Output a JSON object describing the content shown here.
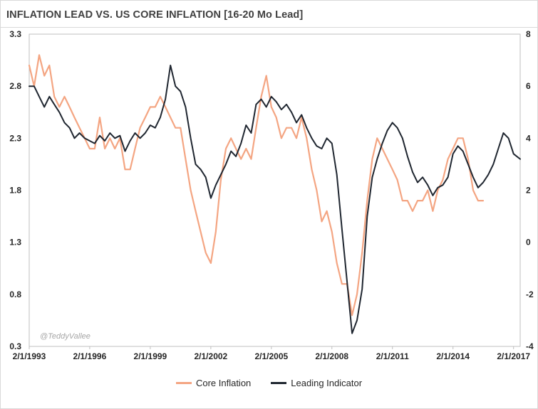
{
  "colors": {
    "core": "#f4a582",
    "leading": "#1f2630",
    "gridline": "#d9d9d9",
    "axis": "#bfbfbf"
  },
  "chart_data": {
    "type": "line",
    "title": "INFLATION LEAD VS. US CORE INFLATION [16-20 Mo Lead]",
    "watermark": "@TeddyVallee",
    "x_range": [
      "1993-02-01",
      "2017-06-01"
    ],
    "x_tick_labels": [
      "2/1/1993",
      "2/1/1996",
      "2/1/1999",
      "2/1/2002",
      "2/1/2005",
      "2/1/2008",
      "2/1/2011",
      "2/1/2014",
      "2/1/2017"
    ],
    "y_left": {
      "ylim": [
        0.3,
        3.3
      ],
      "ticks": [
        "3.3",
        "2.8",
        "2.3",
        "1.8",
        "1.3",
        "0.8",
        "0.3"
      ]
    },
    "y_right": {
      "ylim": [
        -4,
        8
      ],
      "ticks": [
        "8",
        "6",
        "4",
        "2",
        "0",
        "-2",
        "-4"
      ]
    },
    "grid": false,
    "legend_position": "bottom",
    "series": [
      {
        "name": "Core Inflation",
        "axis": "left",
        "points": [
          [
            "1993-02-01",
            3.0
          ],
          [
            "1993-05-01",
            2.8
          ],
          [
            "1993-08-01",
            3.1
          ],
          [
            "1993-11-01",
            2.9
          ],
          [
            "1994-02-01",
            3.0
          ],
          [
            "1994-05-01",
            2.7
          ],
          [
            "1994-08-01",
            2.6
          ],
          [
            "1994-11-01",
            2.7
          ],
          [
            "1995-02-01",
            2.6
          ],
          [
            "1995-05-01",
            2.5
          ],
          [
            "1995-08-01",
            2.4
          ],
          [
            "1995-11-01",
            2.3
          ],
          [
            "1996-02-01",
            2.2
          ],
          [
            "1996-05-01",
            2.2
          ],
          [
            "1996-08-01",
            2.5
          ],
          [
            "1996-11-01",
            2.2
          ],
          [
            "1997-02-01",
            2.3
          ],
          [
            "1997-05-01",
            2.2
          ],
          [
            "1997-08-01",
            2.3
          ],
          [
            "1997-11-01",
            2.0
          ],
          [
            "1998-02-01",
            2.0
          ],
          [
            "1998-05-01",
            2.2
          ],
          [
            "1998-08-01",
            2.4
          ],
          [
            "1998-11-01",
            2.5
          ],
          [
            "1999-02-01",
            2.6
          ],
          [
            "1999-05-01",
            2.6
          ],
          [
            "1999-08-01",
            2.7
          ],
          [
            "1999-11-01",
            2.6
          ],
          [
            "2000-02-01",
            2.5
          ],
          [
            "2000-05-01",
            2.4
          ],
          [
            "2000-08-01",
            2.4
          ],
          [
            "2000-11-01",
            2.1
          ],
          [
            "2001-02-01",
            1.8
          ],
          [
            "2001-05-01",
            1.6
          ],
          [
            "2001-08-01",
            1.4
          ],
          [
            "2001-11-01",
            1.2
          ],
          [
            "2002-02-01",
            1.1
          ],
          [
            "2002-05-01",
            1.4
          ],
          [
            "2002-08-01",
            1.9
          ],
          [
            "2002-11-01",
            2.2
          ],
          [
            "2003-02-01",
            2.3
          ],
          [
            "2003-05-01",
            2.2
          ],
          [
            "2003-08-01",
            2.1
          ],
          [
            "2003-11-01",
            2.2
          ],
          [
            "2004-02-01",
            2.1
          ],
          [
            "2004-05-01",
            2.4
          ],
          [
            "2004-08-01",
            2.7
          ],
          [
            "2004-11-01",
            2.9
          ],
          [
            "2005-02-01",
            2.6
          ],
          [
            "2005-05-01",
            2.5
          ],
          [
            "2005-08-01",
            2.3
          ],
          [
            "2005-11-01",
            2.4
          ],
          [
            "2006-02-01",
            2.4
          ],
          [
            "2006-05-01",
            2.3
          ],
          [
            "2006-08-01",
            2.5
          ],
          [
            "2006-11-01",
            2.3
          ],
          [
            "2007-02-01",
            2.0
          ],
          [
            "2007-05-01",
            1.8
          ],
          [
            "2007-08-01",
            1.5
          ],
          [
            "2007-11-01",
            1.6
          ],
          [
            "2008-02-01",
            1.4
          ],
          [
            "2008-05-01",
            1.1
          ],
          [
            "2008-08-01",
            0.9
          ],
          [
            "2008-11-01",
            0.9
          ],
          [
            "2009-02-01",
            0.6
          ],
          [
            "2009-05-01",
            0.8
          ],
          [
            "2009-08-01",
            1.2
          ],
          [
            "2009-11-01",
            1.7
          ],
          [
            "2010-02-01",
            2.1
          ],
          [
            "2010-05-01",
            2.3
          ],
          [
            "2010-08-01",
            2.2
          ],
          [
            "2010-11-01",
            2.1
          ],
          [
            "2011-02-01",
            2.0
          ],
          [
            "2011-05-01",
            1.9
          ],
          [
            "2011-08-01",
            1.7
          ],
          [
            "2011-11-01",
            1.7
          ],
          [
            "2012-02-01",
            1.6
          ],
          [
            "2012-05-01",
            1.7
          ],
          [
            "2012-08-01",
            1.7
          ],
          [
            "2012-11-01",
            1.8
          ],
          [
            "2013-02-01",
            1.6
          ],
          [
            "2013-05-01",
            1.8
          ],
          [
            "2013-08-01",
            1.9
          ],
          [
            "2013-11-01",
            2.1
          ],
          [
            "2014-02-01",
            2.2
          ],
          [
            "2014-05-01",
            2.3
          ],
          [
            "2014-08-01",
            2.3
          ],
          [
            "2014-11-01",
            2.1
          ],
          [
            "2015-02-01",
            1.8
          ],
          [
            "2015-05-01",
            1.7
          ],
          [
            "2015-08-01",
            1.7
          ]
        ]
      },
      {
        "name": "Leading Indicator",
        "axis": "right",
        "points": [
          [
            "1993-02-01",
            6.0
          ],
          [
            "1993-05-01",
            6.0
          ],
          [
            "1993-08-01",
            5.6
          ],
          [
            "1993-11-01",
            5.2
          ],
          [
            "1994-02-01",
            5.6
          ],
          [
            "1994-05-01",
            5.3
          ],
          [
            "1994-08-01",
            5.0
          ],
          [
            "1994-11-01",
            4.6
          ],
          [
            "1995-02-01",
            4.4
          ],
          [
            "1995-05-01",
            4.0
          ],
          [
            "1995-08-01",
            4.2
          ],
          [
            "1995-11-01",
            4.0
          ],
          [
            "1996-02-01",
            3.9
          ],
          [
            "1996-05-01",
            3.8
          ],
          [
            "1996-08-01",
            4.1
          ],
          [
            "1996-11-01",
            3.9
          ],
          [
            "1997-02-01",
            4.2
          ],
          [
            "1997-05-01",
            4.0
          ],
          [
            "1997-08-01",
            4.1
          ],
          [
            "1997-11-01",
            3.5
          ],
          [
            "1998-02-01",
            3.9
          ],
          [
            "1998-05-01",
            4.2
          ],
          [
            "1998-08-01",
            4.0
          ],
          [
            "1998-11-01",
            4.2
          ],
          [
            "1999-02-01",
            4.5
          ],
          [
            "1999-05-01",
            4.4
          ],
          [
            "1999-08-01",
            4.8
          ],
          [
            "1999-11-01",
            5.5
          ],
          [
            "2000-02-01",
            6.8
          ],
          [
            "2000-05-01",
            6.0
          ],
          [
            "2000-08-01",
            5.8
          ],
          [
            "2000-11-01",
            5.2
          ],
          [
            "2001-02-01",
            4.0
          ],
          [
            "2001-05-01",
            3.0
          ],
          [
            "2001-08-01",
            2.8
          ],
          [
            "2001-11-01",
            2.5
          ],
          [
            "2002-02-01",
            1.7
          ],
          [
            "2002-05-01",
            2.2
          ],
          [
            "2002-08-01",
            2.6
          ],
          [
            "2002-11-01",
            3.0
          ],
          [
            "2003-02-01",
            3.5
          ],
          [
            "2003-05-01",
            3.3
          ],
          [
            "2003-08-01",
            3.8
          ],
          [
            "2003-11-01",
            4.5
          ],
          [
            "2004-02-01",
            4.2
          ],
          [
            "2004-05-01",
            5.3
          ],
          [
            "2004-08-01",
            5.5
          ],
          [
            "2004-11-01",
            5.2
          ],
          [
            "2005-02-01",
            5.6
          ],
          [
            "2005-05-01",
            5.4
          ],
          [
            "2005-08-01",
            5.1
          ],
          [
            "2005-11-01",
            5.3
          ],
          [
            "2006-02-01",
            5.0
          ],
          [
            "2006-05-01",
            4.6
          ],
          [
            "2006-08-01",
            4.9
          ],
          [
            "2006-11-01",
            4.4
          ],
          [
            "2007-02-01",
            4.0
          ],
          [
            "2007-05-01",
            3.7
          ],
          [
            "2007-08-01",
            3.6
          ],
          [
            "2007-11-01",
            4.0
          ],
          [
            "2008-02-01",
            3.8
          ],
          [
            "2008-05-01",
            2.6
          ],
          [
            "2008-08-01",
            0.5
          ],
          [
            "2008-11-01",
            -1.5
          ],
          [
            "2009-02-01",
            -3.5
          ],
          [
            "2009-05-01",
            -3.0
          ],
          [
            "2009-08-01",
            -1.8
          ],
          [
            "2009-11-01",
            1.0
          ],
          [
            "2010-02-01",
            2.5
          ],
          [
            "2010-05-01",
            3.2
          ],
          [
            "2010-08-01",
            3.8
          ],
          [
            "2010-11-01",
            4.3
          ],
          [
            "2011-02-01",
            4.6
          ],
          [
            "2011-05-01",
            4.4
          ],
          [
            "2011-08-01",
            4.0
          ],
          [
            "2011-11-01",
            3.3
          ],
          [
            "2012-02-01",
            2.7
          ],
          [
            "2012-05-01",
            2.3
          ],
          [
            "2012-08-01",
            2.5
          ],
          [
            "2012-11-01",
            2.2
          ],
          [
            "2013-02-01",
            1.8
          ],
          [
            "2013-05-01",
            2.1
          ],
          [
            "2013-08-01",
            2.2
          ],
          [
            "2013-11-01",
            2.5
          ],
          [
            "2014-02-01",
            3.4
          ],
          [
            "2014-05-01",
            3.7
          ],
          [
            "2014-08-01",
            3.5
          ],
          [
            "2014-11-01",
            3.0
          ],
          [
            "2015-02-01",
            2.5
          ],
          [
            "2015-05-01",
            2.1
          ],
          [
            "2015-08-01",
            2.3
          ],
          [
            "2015-11-01",
            2.6
          ],
          [
            "2016-02-01",
            3.0
          ],
          [
            "2016-05-01",
            3.6
          ],
          [
            "2016-08-01",
            4.2
          ],
          [
            "2016-11-01",
            4.0
          ],
          [
            "2017-02-01",
            3.4
          ],
          [
            "2017-04-01",
            3.3
          ],
          [
            "2017-06-01",
            3.2
          ]
        ]
      }
    ]
  }
}
